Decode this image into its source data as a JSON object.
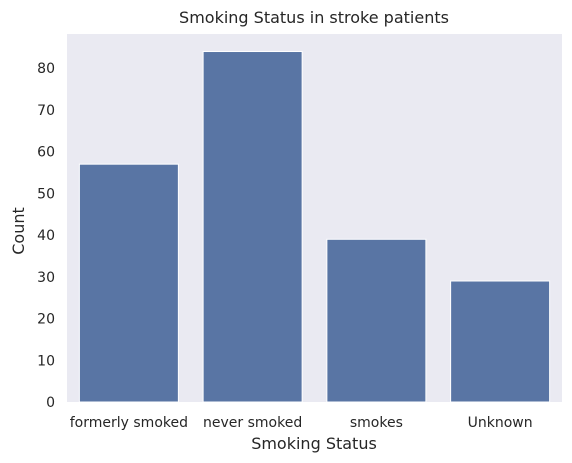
{
  "chart_data": {
    "type": "bar",
    "title": "Smoking Status in stroke patients",
    "xlabel": "Smoking Status",
    "ylabel": "Count",
    "categories": [
      "formerly smoked",
      "never smoked",
      "smokes",
      "Unknown"
    ],
    "values": [
      57,
      84,
      39,
      29
    ],
    "ylim": [
      0,
      88.2
    ],
    "yticks": [
      "0",
      "10",
      "20",
      "30",
      "40",
      "50",
      "60",
      "70",
      "80"
    ],
    "grid": false,
    "colors": {
      "bar": "#5975a4",
      "plot_background": "#eaeaf2",
      "page_background": "#ffffff",
      "text": "#262626"
    }
  }
}
